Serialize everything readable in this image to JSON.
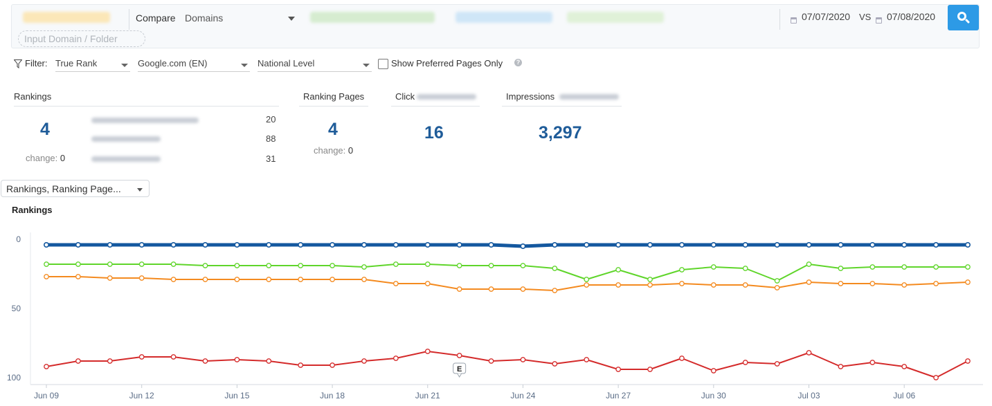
{
  "topbar": {
    "compare_label": "Compare",
    "compare_type": "Domains",
    "domain_placeholder": "Input Domain / Folder",
    "date_from": "07/07/2020",
    "vs_label": "VS",
    "date_to": "07/08/2020",
    "colors": {
      "chip1": "#fde3a6",
      "chip2": "#b9e5b0",
      "chip3": "#9fd0f2",
      "chip4": "#c8eab9",
      "search_button": "#2d9ae6"
    },
    "search_icon": "search-icon"
  },
  "filter": {
    "label": "Filter:",
    "rank_type": "True Rank",
    "engine": "Google.com (EN)",
    "level": "National Level",
    "preferred_label": "Show Preferred Pages Only",
    "preferred_checked": false
  },
  "summary": {
    "rankings": {
      "header": "Rankings",
      "value": "4",
      "change_label": "change:",
      "change_value": "0",
      "competitor_values": [
        "20",
        "88",
        "31"
      ]
    },
    "ranking_pages": {
      "header": "Ranking Pages",
      "value": "4",
      "change_label": "change:",
      "change_value": "0"
    },
    "click": {
      "header": "Click",
      "value": "16"
    },
    "impressions": {
      "header": "Impressions",
      "value": "3,297"
    }
  },
  "chart_selector": {
    "label": "Rankings, Ranking Page..."
  },
  "chart_data": {
    "type": "line",
    "title": "Rankings",
    "ylim": [
      0,
      100
    ],
    "y_inverted": true,
    "y_ticks": [
      "0",
      "50",
      "100"
    ],
    "x_tick_labels": [
      "Jun 09",
      "Jun 12",
      "Jun 15",
      "Jun 18",
      "Jun 21",
      "Jun 24",
      "Jun 27",
      "Jun 30",
      "Jul 03",
      "Jul 06"
    ],
    "x": [
      "Jun 09",
      "Jun 10",
      "Jun 11",
      "Jun 12",
      "Jun 13",
      "Jun 14",
      "Jun 15",
      "Jun 16",
      "Jun 17",
      "Jun 18",
      "Jun 19",
      "Jun 20",
      "Jun 21",
      "Jun 22",
      "Jun 23",
      "Jun 24",
      "Jun 25",
      "Jun 26",
      "Jun 27",
      "Jun 28",
      "Jun 29",
      "Jun 30",
      "Jul 01",
      "Jul 02",
      "Jul 03",
      "Jul 04",
      "Jul 05",
      "Jul 06",
      "Jul 07",
      "Jul 08"
    ],
    "grid": false,
    "annotation": {
      "label": "E",
      "x": "Jun 22"
    },
    "series": [
      {
        "color": "#14589f",
        "width": 5,
        "values": [
          4,
          4,
          4,
          4,
          4,
          4,
          4,
          4,
          4,
          4,
          4,
          4,
          4,
          4,
          4,
          5,
          4,
          4,
          4,
          4,
          4,
          4,
          4,
          4,
          4,
          4,
          4,
          4,
          4,
          4
        ]
      },
      {
        "color": "#5fd52a",
        "width": 2,
        "values": [
          18,
          18,
          18,
          18,
          18,
          19,
          19,
          19,
          19,
          19,
          20,
          18,
          18,
          19,
          19,
          19,
          21,
          29,
          22,
          29,
          22,
          20,
          21,
          30,
          18,
          21,
          20,
          20,
          20,
          20
        ]
      },
      {
        "color": "#f48a1f",
        "width": 2,
        "values": [
          27,
          27,
          28,
          28,
          29,
          29,
          29,
          29,
          29,
          29,
          29,
          32,
          32,
          36,
          36,
          36,
          37,
          33,
          33,
          33,
          32,
          33,
          33,
          35,
          31,
          32,
          32,
          33,
          32,
          31
        ]
      },
      {
        "color": "#d42a2a",
        "width": 2,
        "values": [
          92,
          88,
          88,
          85,
          85,
          88,
          87,
          88,
          91,
          91,
          88,
          86,
          81,
          84,
          88,
          87,
          90,
          87,
          94,
          94,
          86,
          95,
          89,
          90,
          82,
          92,
          89,
          92,
          100,
          88
        ]
      }
    ]
  }
}
